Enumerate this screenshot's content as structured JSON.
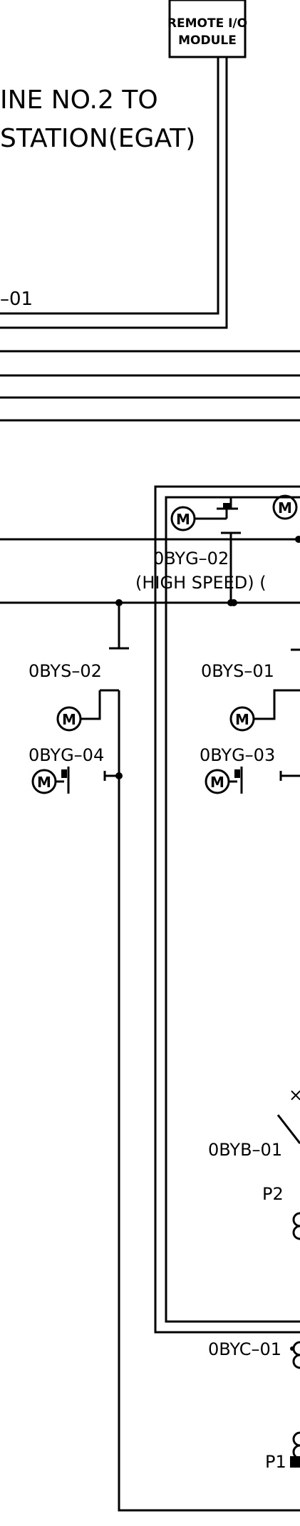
{
  "remote_io": {
    "line1": "REMOTE I/O",
    "line2": "MODULE"
  },
  "title": {
    "line1": "INE  NO.2  TO",
    "line2": "STATION(EGAT)"
  },
  "tag_fragment": "–01",
  "breaker_labels": {
    "obyg02": "0BYG–02",
    "high_speed": "(HIGH  SPEED)  (",
    "obys02": "0BYS–02",
    "obys01": "0BYS–01",
    "obyg04": "0BYG–04",
    "obyg03": "0BYG–03",
    "obyb01": "0BYB–01",
    "obyc01": "0BYC–01"
  },
  "motor_symbol": "M",
  "ports": {
    "p1": "P1",
    "p2": "P2"
  },
  "cross_mark": "×"
}
